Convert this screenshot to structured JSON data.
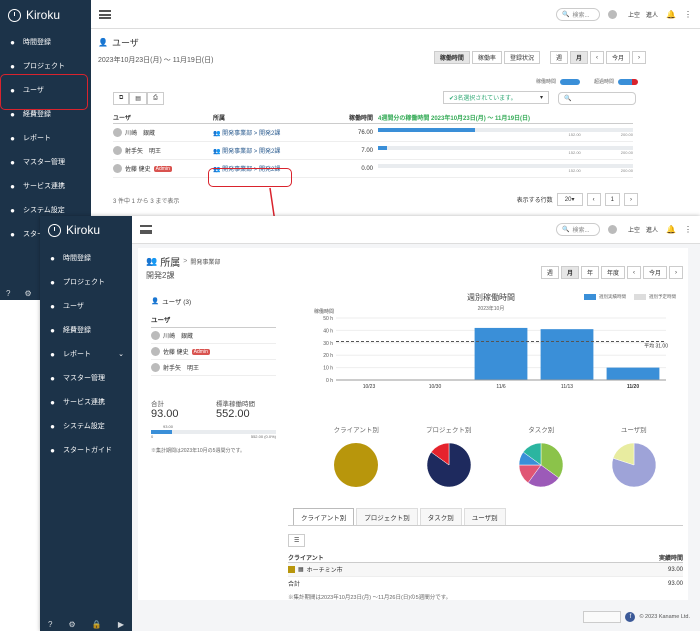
{
  "app": {
    "name": "Kiroku"
  },
  "back": {
    "nav": [
      {
        "label": "時間登録",
        "icon": "clock-icon"
      },
      {
        "label": "プロジェクト",
        "icon": "cubes-icon"
      },
      {
        "label": "ユーザ",
        "icon": "user-icon"
      },
      {
        "label": "経費登録",
        "icon": "yen-icon"
      },
      {
        "label": "レポート",
        "icon": "table-icon"
      },
      {
        "label": "マスター管理",
        "icon": "database-icon"
      },
      {
        "label": "サービス連携",
        "icon": "plug-icon"
      },
      {
        "label": "システム設定",
        "icon": "gear-icon"
      },
      {
        "label": "スタートガイド",
        "icon": "check-icon"
      }
    ],
    "search_placeholder": "検索...",
    "user": "上空　進人",
    "title": "ユーザ",
    "date_range": "2023年10月23日(月) ～ 11月19日(日)",
    "tabs": [
      "稼働時間",
      "稼働率",
      "登録状況"
    ],
    "periods": [
      "週",
      "月",
      "今月"
    ],
    "toggle1": "稼働時間",
    "toggle2": "超過時間",
    "filter": "✔3名選択されています。",
    "cols": {
      "user": "ユーザ",
      "dept": "所属",
      "hours": "稼働時間",
      "period": "4週間分の稼働時間 2023年10月23日(月) ～ 11月19日(日)"
    },
    "rows": [
      {
        "name": "川崎　銀蔵",
        "dept": "開発事業部 > 開発2課",
        "hours": "76.00",
        "pct": 0.38,
        "label": "76.00",
        "max": "200.00",
        "mid": "152.00"
      },
      {
        "name": "射手矢　明王",
        "dept": "開発事業部 > 開発2課",
        "hours": "7.00",
        "pct": 0.035,
        "label": "7.00",
        "max": "200.00",
        "mid": "152.00"
      },
      {
        "name": "佐藤 健史",
        "dept": "開発事業部 > 開発2課",
        "hours": "0.00",
        "pct": 0,
        "label": "",
        "max": "200.00",
        "mid": "152.00",
        "admin": "Admin"
      }
    ],
    "footer": "3 件中 1 から 3 まで表示",
    "page_size_label": "表示する行数",
    "page_size": "20"
  },
  "front": {
    "search_placeholder": "検索...",
    "user": "上空　進人",
    "title": "所属",
    "breadcrumb": "開発事業部",
    "subtitle": "開発2課",
    "periods": [
      "週",
      "月",
      "年",
      "年度",
      "今月"
    ],
    "users_label": "ユーザ (3)",
    "users_col": "ユーザ",
    "users": [
      {
        "name": "川崎　銀蔵"
      },
      {
        "name": "佐藤 健史",
        "admin": "Admin"
      },
      {
        "name": "射手矢　明王"
      }
    ],
    "total_label": "合計",
    "total": "93.00",
    "std_label": "標準稼働時間",
    "std": "552.00",
    "bar_label": "93.00",
    "bar_min": "0",
    "bar_max": "552.00 (0.0%)",
    "bar_pct": 0.17,
    "note1": "※集計期間は2023年10月の5週間分です。",
    "tabs": [
      "クライアント別",
      "プロジェクト別",
      "タスク別",
      "ユーザ別"
    ],
    "table": {
      "col1": "クライアント",
      "col2": "実績時間",
      "rows": [
        {
          "name": "ホーチミン市",
          "val": "93.00",
          "color": "#b8960c"
        }
      ],
      "total_label": "合計",
      "total": "93.00"
    },
    "note2": "※集計期間は2023年10月23日(月) ～11月26日(日)の5週間分です。",
    "footer": "© 2023 Kaname Ltd.",
    "pies": [
      {
        "title": "クライアント別",
        "slices": [
          {
            "v": 1,
            "c": "#b8960c"
          }
        ]
      },
      {
        "title": "プロジェクト別",
        "slices": [
          {
            "v": 0.85,
            "c": "#1e2a5e"
          },
          {
            "v": 0.15,
            "c": "#e5232d"
          }
        ]
      },
      {
        "title": "タスク別",
        "slices": [
          {
            "v": 0.35,
            "c": "#8bc34a"
          },
          {
            "v": 0.25,
            "c": "#9c5ab8"
          },
          {
            "v": 0.15,
            "c": "#e05574"
          },
          {
            "v": 0.1,
            "c": "#3a8fd8"
          },
          {
            "v": 0.15,
            "c": "#2bb5a0"
          }
        ]
      },
      {
        "title": "ユーザ別",
        "slices": [
          {
            "v": 0.8,
            "c": "#9ea3d8"
          },
          {
            "v": 0.2,
            "c": "#e8eca0"
          }
        ]
      }
    ]
  },
  "chart_data": {
    "type": "bar",
    "title": "週別稼働時間",
    "subtitle": "2023年10月",
    "ylabel": "稼働時間",
    "categories": [
      "10/23",
      "10/30",
      "11/6",
      "11/13",
      "11/20"
    ],
    "series": [
      {
        "name": "週別実績時間",
        "values": [
          0,
          0,
          42,
          41,
          10
        ],
        "color": "#3a8fd8"
      },
      {
        "name": "週別予定時間",
        "values": [
          0,
          0,
          0,
          0,
          0
        ],
        "color": "#ccc"
      }
    ],
    "ylim": [
      0,
      50
    ],
    "yticks": [
      "50 h",
      "40 h",
      "30 h",
      "20 h",
      "10 h",
      "0 h"
    ],
    "average": {
      "label": "平均 31.00",
      "value": 31
    }
  }
}
